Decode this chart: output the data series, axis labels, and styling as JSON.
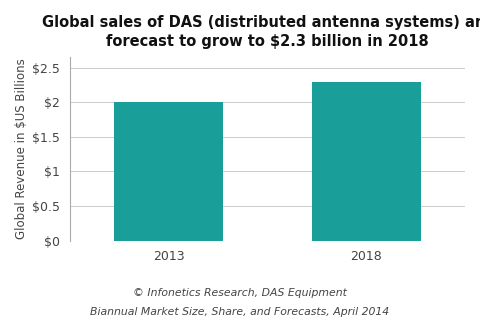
{
  "title_line1": "Global sales of DAS (distributed antenna systems) are",
  "title_line2": "forecast to grow to $2.3 billion in 2018",
  "categories": [
    "2013",
    "2018"
  ],
  "values": [
    2.0,
    2.3
  ],
  "bar_color": "#1a9e9a",
  "ylabel": "Global Revenue in $US Billions",
  "ylim": [
    0,
    2.65
  ],
  "yticks": [
    0,
    0.5,
    1.0,
    1.5,
    2.0,
    2.5
  ],
  "ytick_labels": [
    "$0",
    "$0.5",
    "$1",
    "$1.5",
    "$2",
    "$2.5"
  ],
  "background_color": "#ffffff",
  "footnote_line1": "© Infonetics Research, DAS Equipment",
  "footnote_line2": "Biannual Market Size, Share, and Forecasts, April 2014",
  "bar_width": 0.55,
  "title_fontsize": 10.5,
  "ylabel_fontsize": 8.5,
  "tick_fontsize": 9,
  "footnote_fontsize": 7.8,
  "text_color": "#444444"
}
